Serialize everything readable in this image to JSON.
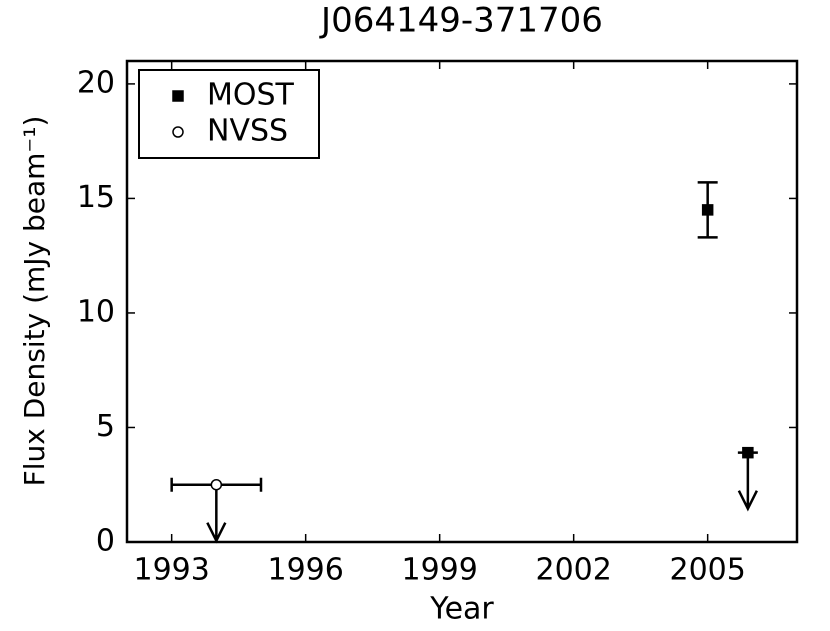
{
  "chart_data": {
    "type": "errorbar",
    "title": "J064149-371706",
    "x_label": "Year",
    "y_label": "Flux Density (mJy beam⁻¹)",
    "xlim": [
      1992,
      2007
    ],
    "ylim": [
      0,
      21
    ],
    "xticks": [
      1993,
      1996,
      1999,
      2002,
      2005
    ],
    "yticks": [
      0,
      5,
      10,
      15,
      20
    ],
    "legend": "upper left",
    "series": [
      {
        "name": "MOST",
        "marker": "square",
        "filled": true,
        "color": "#000000",
        "x": [
          2005.0,
          2005.9
        ],
        "values": [
          14.5,
          3.9
        ],
        "yerr": [
          1.2,
          null
        ],
        "xerr": [
          null,
          null
        ],
        "upper_limit": [
          false,
          true
        ]
      },
      {
        "name": "NVSS",
        "marker": "circle",
        "filled": false,
        "color": "#000000",
        "x": [
          1994.0
        ],
        "values": [
          2.5
        ],
        "yerr": [
          null
        ],
        "xerr": [
          1.0
        ],
        "upper_limit": [
          true
        ]
      }
    ]
  }
}
